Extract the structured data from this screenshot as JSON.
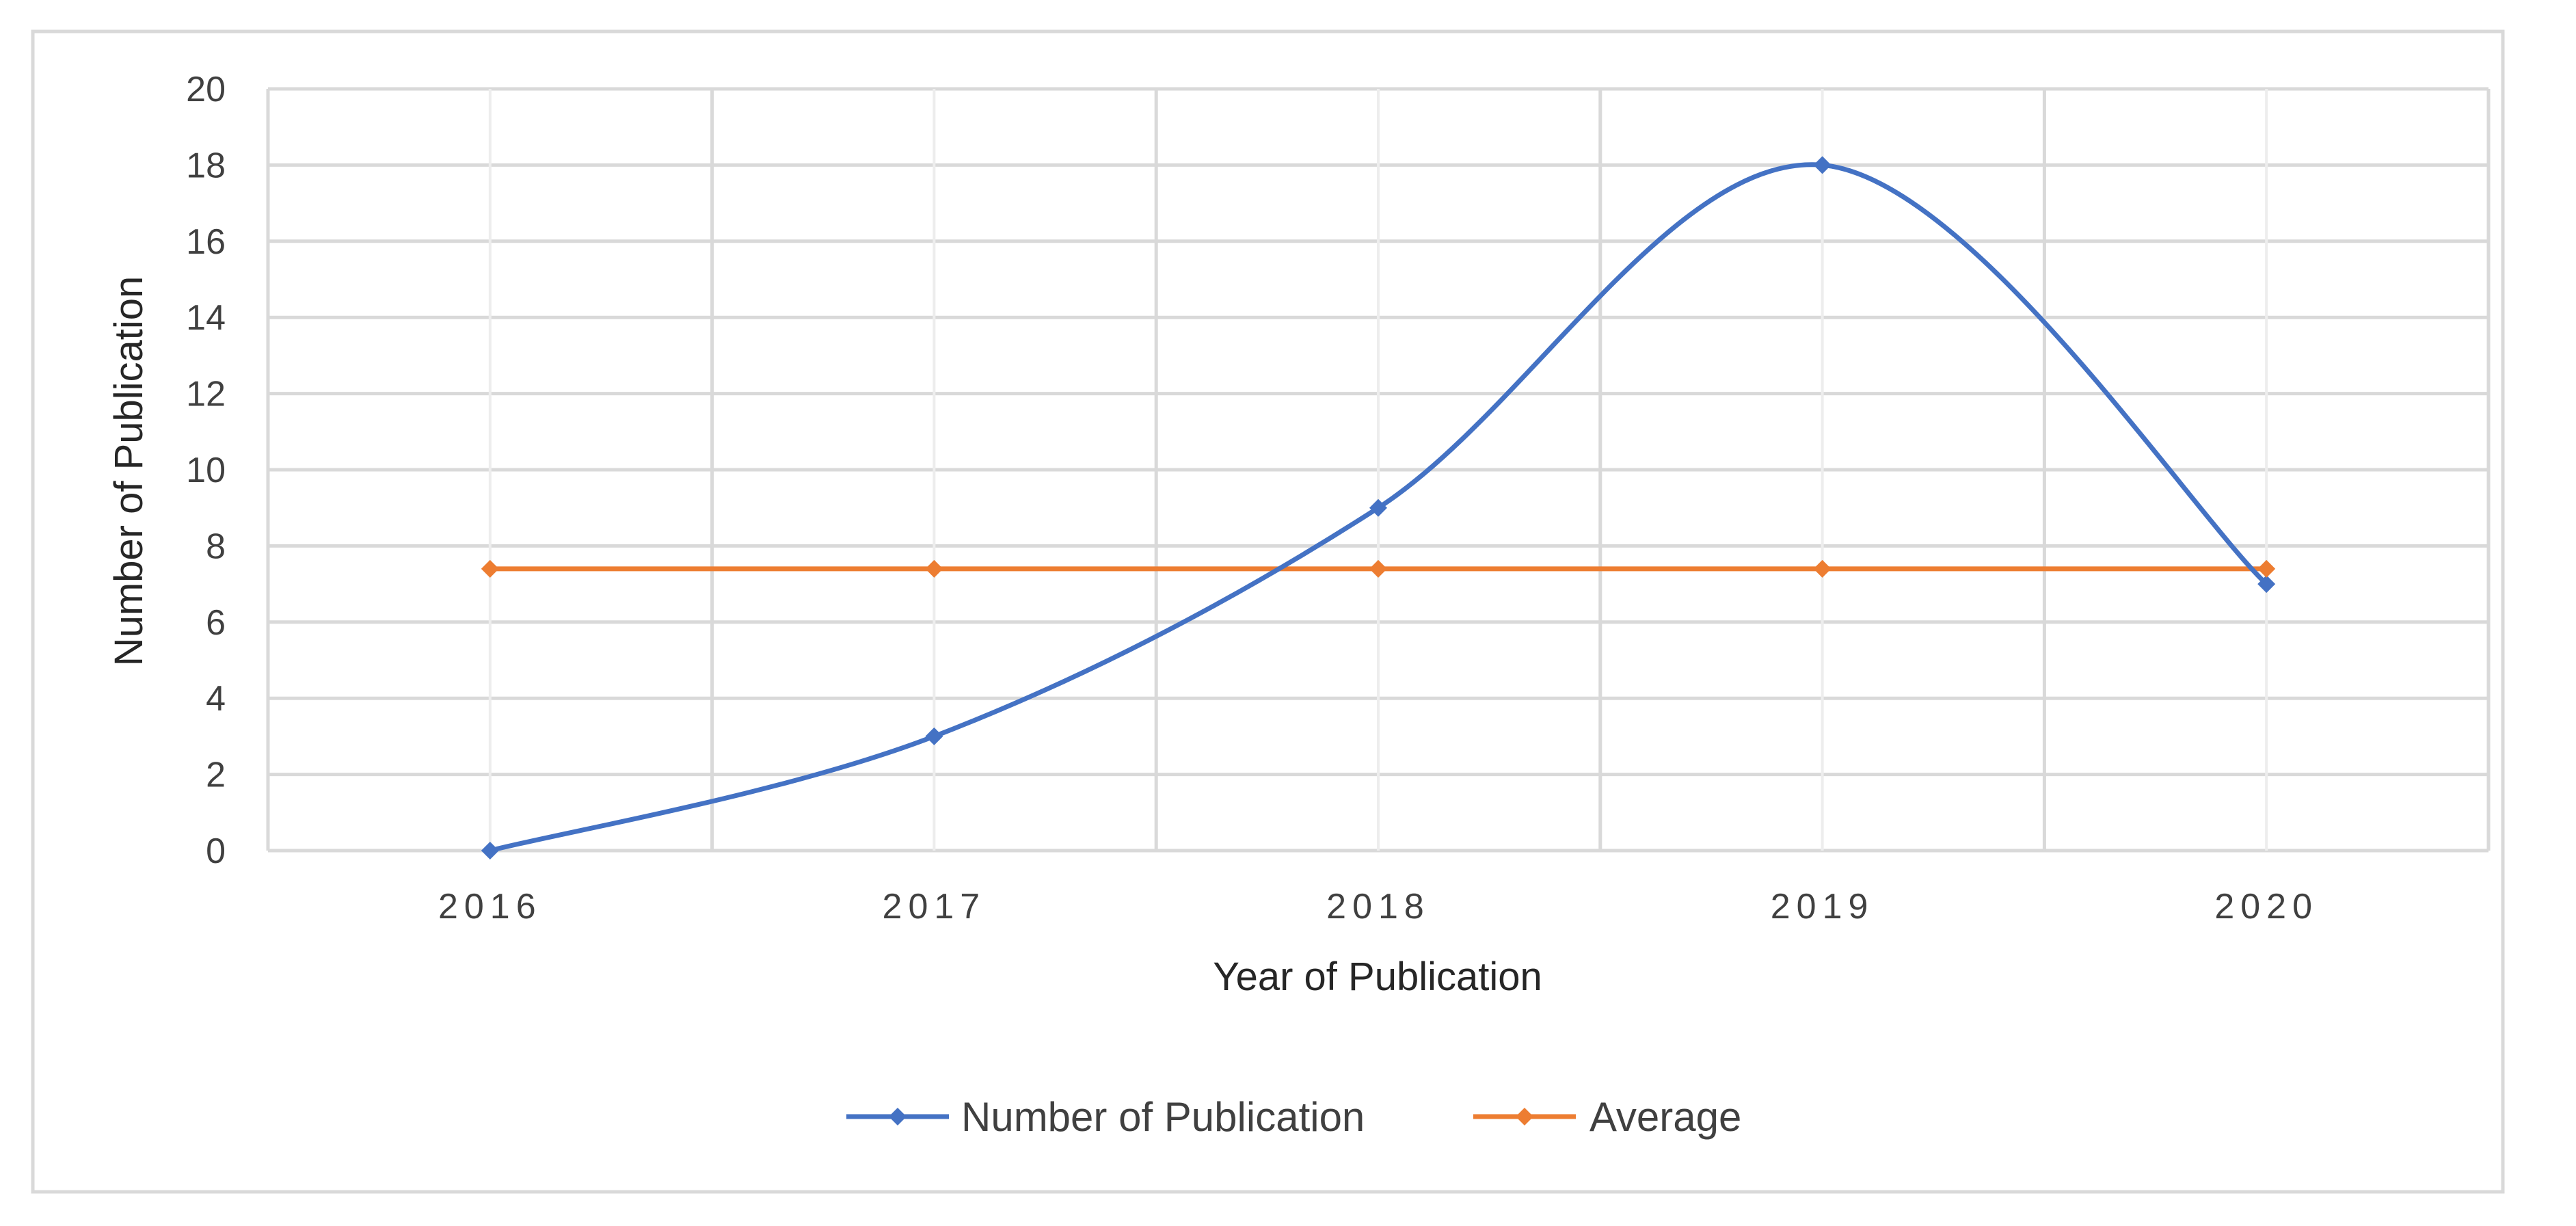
{
  "chart_data": {
    "type": "line",
    "title": "",
    "xlabel": "Year of Publication",
    "ylabel": "Number of Publication",
    "categories": [
      "2016",
      "2017",
      "2018",
      "2019",
      "2020"
    ],
    "y_ticks": [
      "0",
      "2",
      "4",
      "6",
      "8",
      "10",
      "12",
      "14",
      "16",
      "18",
      "20"
    ],
    "ylim": [
      0,
      20
    ],
    "grid": true,
    "smoothed": true,
    "legend_position": "bottom",
    "series": [
      {
        "name": "Number of Publication",
        "values": [
          0,
          3,
          9,
          18,
          7
        ],
        "color": "#4472C4",
        "marker": "diamond"
      },
      {
        "name": "Average",
        "values": [
          7.4,
          7.4,
          7.4,
          7.4,
          7.4
        ],
        "color": "#ED7D31",
        "marker": "diamond"
      }
    ],
    "colors": {
      "grid": "#D9D9D9",
      "frame": "#D9D9D9"
    }
  }
}
